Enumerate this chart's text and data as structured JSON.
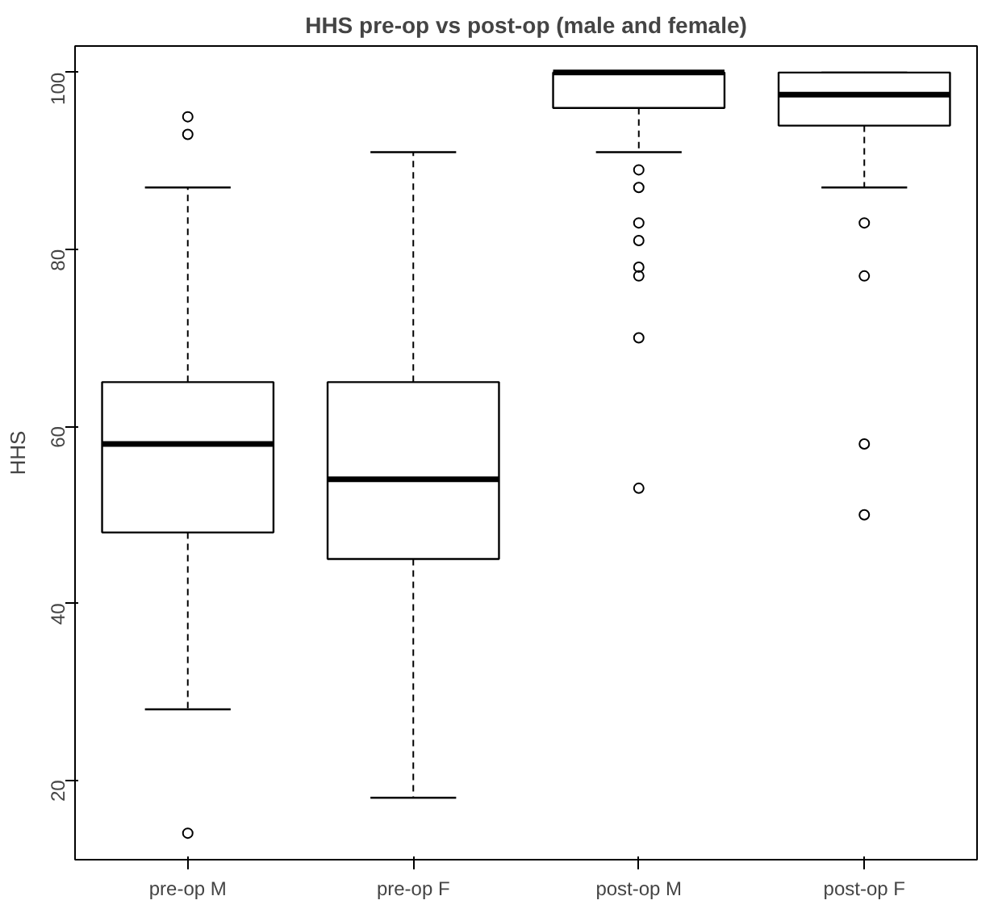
{
  "chart_data": {
    "type": "box",
    "title": "HHS pre-op vs post-op (male and female)",
    "ylabel": "HHS",
    "categories": [
      "pre-op M",
      "pre-op F",
      "post-op M",
      "post-op F"
    ],
    "boxes": [
      {
        "low": 28,
        "q1": 48,
        "median": 58,
        "q3": 65,
        "high": 87,
        "outliers": [
          95,
          93,
          14
        ]
      },
      {
        "low": 18,
        "q1": 45,
        "median": 54,
        "q3": 65,
        "high": 91
      },
      {
        "low": 91,
        "q1": 96,
        "median": 100,
        "q3": 100,
        "high": 100,
        "outliers": [
          89,
          87,
          83,
          81,
          78,
          77,
          70,
          53
        ]
      },
      {
        "low": 87,
        "q1": 94,
        "median": 97.5,
        "q3": 100,
        "high": 100,
        "outliers": [
          83,
          77,
          58,
          50
        ]
      }
    ],
    "ylim": [
      11,
      103
    ],
    "yticks": [
      20,
      40,
      60,
      80,
      100
    ],
    "grid": false
  }
}
